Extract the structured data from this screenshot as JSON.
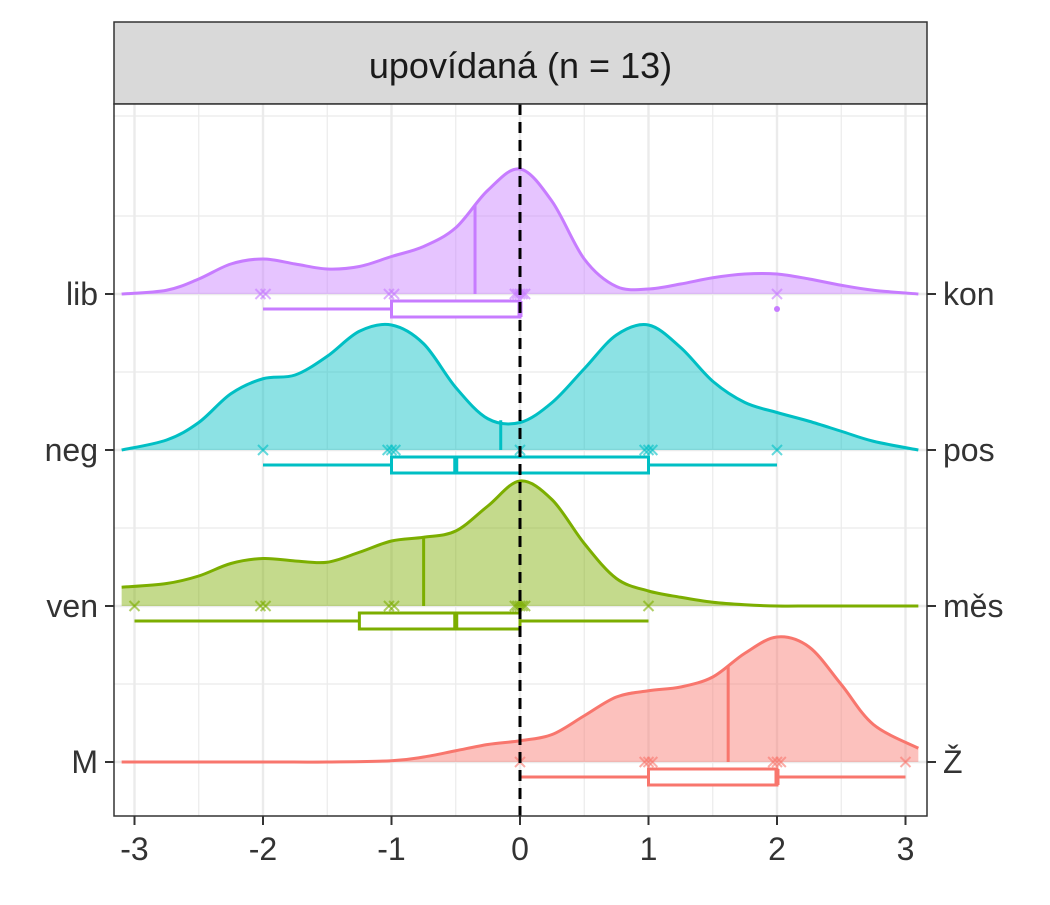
{
  "chart_data": {
    "type": "ridgeline",
    "facet_title": "upovídaná (n = 13)",
    "x_ticks": [
      -3,
      -2,
      -1,
      0,
      1,
      2,
      3
    ],
    "x_tick_labels": [
      "-3",
      "-2",
      "-1",
      "0",
      "1",
      "2",
      "3"
    ],
    "xlim": [
      -3.1,
      3.1
    ],
    "reference_line_x": 0,
    "grid": true,
    "series": [
      {
        "left_label": "lib",
        "right_label": "kon",
        "color": "#c77cff",
        "mean": -0.35,
        "points": [
          -2.02,
          -1.98,
          -1.02,
          -0.98,
          -0.04,
          -0.02,
          0.0,
          0.02,
          0.04,
          2.0
        ],
        "box": {
          "whisker_low": -2,
          "q1": -1,
          "median": 0,
          "q3": 0,
          "whisker_high": 0
        },
        "outliers": [
          2
        ],
        "density_x": [
          -3.1,
          -2.75,
          -2.5,
          -2.25,
          -2.0,
          -1.75,
          -1.5,
          -1.25,
          -1.0,
          -0.75,
          -0.5,
          -0.25,
          0.0,
          0.25,
          0.5,
          0.75,
          1.0,
          1.25,
          1.5,
          1.75,
          2.0,
          2.25,
          2.5,
          2.75,
          3.1
        ],
        "density_y": [
          0.0,
          0.03,
          0.12,
          0.24,
          0.28,
          0.24,
          0.2,
          0.22,
          0.3,
          0.38,
          0.53,
          0.83,
          1.0,
          0.74,
          0.28,
          0.06,
          0.04,
          0.08,
          0.13,
          0.16,
          0.16,
          0.12,
          0.07,
          0.03,
          0.0
        ]
      },
      {
        "left_label": "neg",
        "right_label": "pos",
        "color": "#00bfc4",
        "mean": -0.15,
        "points": [
          -2.0,
          -1.03,
          -1.0,
          -0.97,
          0.0,
          0.97,
          1.0,
          1.03,
          2.0
        ],
        "box": {
          "whisker_low": -2,
          "q1": -1,
          "median": -0.5,
          "q3": 1,
          "whisker_high": 2
        },
        "outliers": [],
        "density_x": [
          -3.1,
          -2.75,
          -2.5,
          -2.25,
          -2.0,
          -1.75,
          -1.5,
          -1.25,
          -1.0,
          -0.75,
          -0.5,
          -0.25,
          0.0,
          0.25,
          0.5,
          0.75,
          1.0,
          1.25,
          1.5,
          1.75,
          2.0,
          2.25,
          2.5,
          2.75,
          3.1
        ],
        "density_y": [
          0.0,
          0.08,
          0.22,
          0.45,
          0.57,
          0.6,
          0.75,
          0.95,
          1.0,
          0.85,
          0.5,
          0.25,
          0.22,
          0.38,
          0.65,
          0.92,
          1.0,
          0.82,
          0.55,
          0.38,
          0.3,
          0.23,
          0.15,
          0.07,
          0.0
        ]
      },
      {
        "left_label": "ven",
        "right_label": "měs",
        "color": "#7cae00",
        "mean": -0.75,
        "points": [
          -3.0,
          -2.02,
          -1.98,
          -1.02,
          -0.98,
          -0.04,
          -0.02,
          0.0,
          0.02,
          0.04,
          1.0
        ],
        "box": {
          "whisker_low": -3,
          "q1": -1.25,
          "median": -0.5,
          "q3": 0,
          "whisker_high": 1
        },
        "outliers": [],
        "density_x": [
          -3.1,
          -2.75,
          -2.5,
          -2.25,
          -2.0,
          -1.75,
          -1.5,
          -1.25,
          -1.0,
          -0.75,
          -0.5,
          -0.25,
          0.0,
          0.25,
          0.5,
          0.75,
          1.0,
          1.25,
          1.5,
          1.75,
          2.0,
          2.25,
          2.5,
          2.75,
          3.1
        ],
        "density_y": [
          0.15,
          0.18,
          0.24,
          0.34,
          0.38,
          0.36,
          0.35,
          0.43,
          0.52,
          0.55,
          0.6,
          0.8,
          1.0,
          0.85,
          0.5,
          0.22,
          0.12,
          0.07,
          0.03,
          0.01,
          0.0,
          0.0,
          0.0,
          0.0,
          0.0
        ]
      },
      {
        "left_label": "M",
        "right_label": "Ž",
        "color": "#f8766d",
        "mean": 1.62,
        "points": [
          0.0,
          0.97,
          1.0,
          1.03,
          1.97,
          2.0,
          2.03,
          3.0
        ],
        "box": {
          "whisker_low": 0,
          "q1": 1,
          "median": 2,
          "q3": 2,
          "whisker_high": 3
        },
        "outliers": [],
        "density_x": [
          -3.1,
          -2.0,
          -1.5,
          -1.0,
          -0.75,
          -0.5,
          -0.25,
          0.0,
          0.25,
          0.5,
          0.75,
          1.0,
          1.25,
          1.5,
          1.75,
          2.0,
          2.25,
          2.5,
          2.75,
          3.1
        ],
        "density_y": [
          0.0,
          0.0,
          0.0,
          0.01,
          0.04,
          0.09,
          0.14,
          0.17,
          0.22,
          0.37,
          0.52,
          0.57,
          0.6,
          0.68,
          0.87,
          1.0,
          0.92,
          0.62,
          0.3,
          0.11
        ]
      }
    ]
  }
}
